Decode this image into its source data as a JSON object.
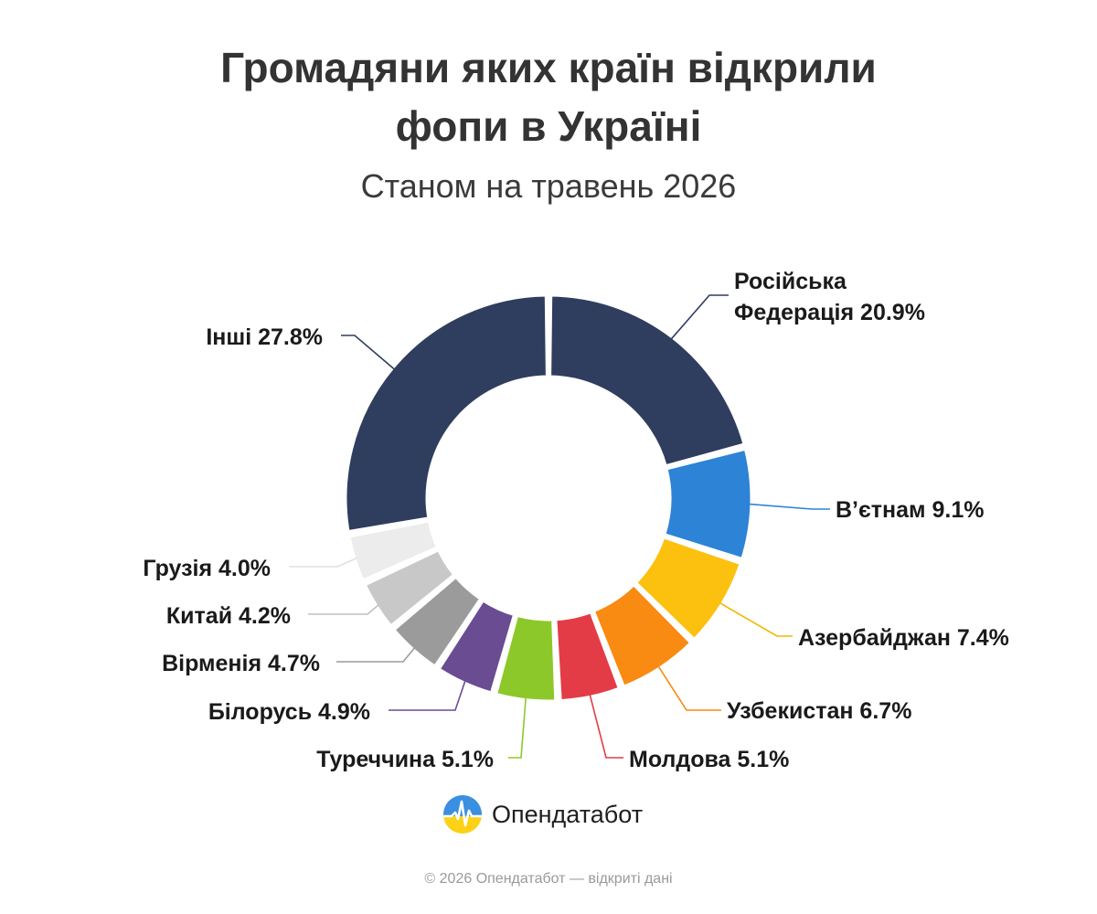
{
  "title": "Громадяни яких країн відкрили\nфопи в Україні",
  "subtitle": "Станом на травень 2026",
  "logo_text": "Опендатабот",
  "footer": "© 2026 Опендатабот — відкриті дані",
  "colors": {
    "others": "#2f3d5e",
    "russia": "#2f3d5e",
    "vietnam": "#2d83d6",
    "azerbaijan": "#fcc10f",
    "uzbekistan": "#f98a12",
    "moldova": "#e33c47",
    "turkey": "#8dc82a",
    "belarus": "#6a4c93",
    "armenia": "#9b9b9b",
    "china": "#c8c8c8",
    "georgia": "#ececec"
  },
  "chart_data": {
    "type": "pie",
    "variant": "donut",
    "title": "Громадяни яких країн відкрили фопи в Україні",
    "subtitle": "Станом на травень 2026",
    "slices": [
      {
        "key": "russia",
        "label": "Російська\nФедерація 20.9%",
        "value": 20.9,
        "color": "#2f3d5e"
      },
      {
        "key": "vietnam",
        "label": "В’єтнам 9.1%",
        "value": 9.1,
        "color": "#2d83d6"
      },
      {
        "key": "azerbaijan",
        "label": "Азербайджан 7.4%",
        "value": 7.4,
        "color": "#fcc10f"
      },
      {
        "key": "uzbekistan",
        "label": "Узбекистан 6.7%",
        "value": 6.7,
        "color": "#f98a12"
      },
      {
        "key": "moldova",
        "label": "Молдова 5.1%",
        "value": 5.1,
        "color": "#e33c47"
      },
      {
        "key": "turkey",
        "label": "Туреччина 5.1%",
        "value": 5.1,
        "color": "#8dc82a"
      },
      {
        "key": "belarus",
        "label": "Білорусь 4.9%",
        "value": 4.9,
        "color": "#6a4c93"
      },
      {
        "key": "armenia",
        "label": "Вірменія 4.7%",
        "value": 4.7,
        "color": "#9b9b9b"
      },
      {
        "key": "china",
        "label": "Китай 4.2%",
        "value": 4.2,
        "color": "#c8c8c8"
      },
      {
        "key": "georgia",
        "label": "Грузія 4.0%",
        "value": 4.0,
        "color": "#ececec"
      },
      {
        "key": "others",
        "label": "Інші 27.8%",
        "value": 27.8,
        "color": "#2f3d5e"
      }
    ]
  }
}
